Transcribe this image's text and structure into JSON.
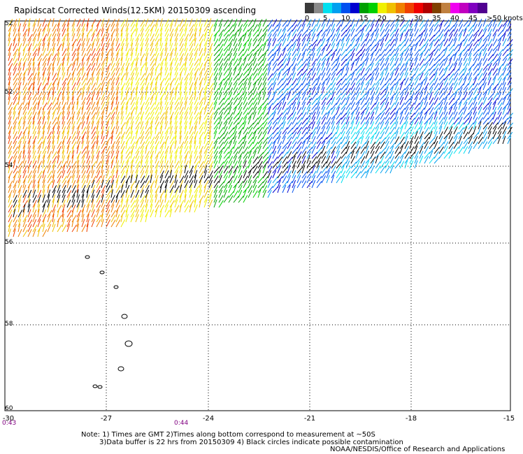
{
  "header": {
    "title": "Rapidscat Corrected Winds(12.5KM) 20150309 ascending"
  },
  "legend": {
    "colors": [
      "#3a3a3a",
      "#8a8a8a",
      "#00e0f0",
      "#00a0f0",
      "#0050f0",
      "#0000d0",
      "#00a000",
      "#00d000",
      "#f0f000",
      "#f0c000",
      "#f08000",
      "#f04000",
      "#f00000",
      "#b00000",
      "#804000",
      "#c08040",
      "#f000f0",
      "#c000c0",
      "#8000c0",
      "#500090"
    ],
    "labels": [
      "0",
      "5",
      "10",
      "15",
      "20",
      "25",
      "30",
      "35",
      "40",
      "45",
      ">50 knots"
    ]
  },
  "map": {
    "lat_labels": [
      "52",
      "52",
      "54",
      "56",
      "58",
      "60"
    ],
    "lon_labels": [
      "-30",
      "-27",
      "-24",
      "-21",
      "-18",
      "-15"
    ],
    "time_labels": [
      "0:43",
      "0:44"
    ]
  },
  "footer": {
    "note_line1": "Note: 1) Times are GMT 2)Times along bottom correspond to measurement at ~50S",
    "note_line2": "3)Data buffer is 22 hrs from 20150309 4) Black circles indicate possible contamination",
    "credit": "NOAA/NESDIS/Office of Research and Applications"
  }
}
